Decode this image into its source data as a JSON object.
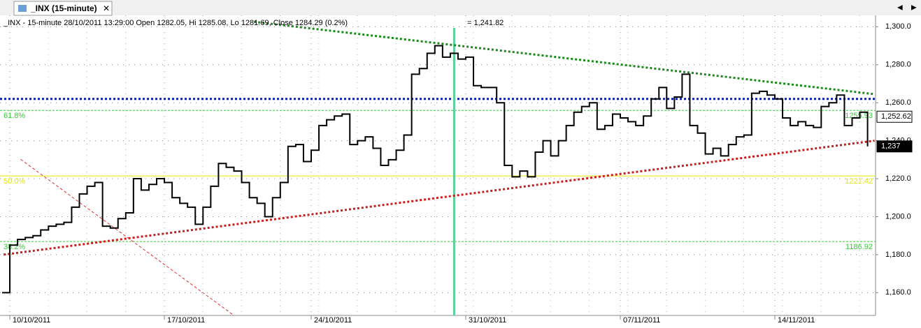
{
  "window": {
    "tab_title": "_INX (15-minute)"
  },
  "chart_data": {
    "type": "line",
    "title": "_INX - 15-minute 28/10/2011 13:29:00 Open 1282.05, Hi 1285.08, Lo 1281.69, Close 1284.29 (0.2%)",
    "cursor_value": "= 1,241.82",
    "categories": [
      null,
      "10/10/2011",
      null,
      null,
      null,
      null,
      null,
      null,
      null,
      null,
      null,
      null,
      null,
      null,
      null,
      null,
      null,
      null,
      null,
      null,
      null,
      "17/10/2011",
      null,
      null,
      null,
      null,
      null,
      null,
      null,
      null,
      null,
      null,
      null,
      null,
      null,
      null,
      null,
      null,
      null,
      null,
      "24/10/2011",
      null,
      null,
      null,
      null,
      null,
      null,
      null,
      null,
      null,
      null,
      null,
      null,
      null,
      null,
      null,
      null,
      null,
      null,
      null,
      "31/10/2011",
      null,
      null,
      null,
      null,
      null,
      null,
      null,
      null,
      null,
      null,
      null,
      null,
      null,
      null,
      null,
      null,
      null,
      null,
      null,
      "07/11/2011",
      null,
      null,
      null,
      null,
      null,
      null,
      null,
      null,
      null,
      null,
      null,
      null,
      null,
      null,
      null,
      null,
      null,
      null,
      null,
      "14/11/2011",
      null,
      null,
      null,
      null,
      null,
      null,
      null,
      null,
      null,
      null,
      null,
      null
    ],
    "series": [
      {
        "name": "_INX",
        "color": "#000000",
        "values": [
          1160,
          1185,
          1188,
          1189,
          1190,
          1193,
          1195,
          1196,
          1197,
          1205,
          1212,
          1216,
          1218,
          1195,
          1194,
          1199,
          1202,
          1220,
          1214,
          1217,
          1220,
          1218,
          1210,
          1207,
          1205,
          1196,
          1205,
          1216,
          1228,
          1226,
          1224,
          1218,
          1210,
          1207,
          1200,
          1210,
          1218,
          1237,
          1238,
          1229,
          1235,
          1248,
          1251,
          1253,
          1254,
          1238,
          1240,
          1242,
          1236,
          1227,
          1230,
          1235,
          1243,
          1275,
          1278,
          1286,
          1290,
          1284,
          1286,
          1283,
          1284,
          1269,
          1268,
          1268,
          1260,
          1227,
          1221,
          1224,
          1221,
          1234,
          1240,
          1232,
          1240,
          1248,
          1255,
          1258,
          1260,
          1246,
          1248,
          1254,
          1252,
          1250,
          1248,
          1253,
          1262,
          1268,
          1257,
          1263,
          1275,
          1248,
          1244,
          1233,
          1236,
          1232,
          1238,
          1242,
          1243,
          1265,
          1266,
          1264,
          1262,
          1252,
          1248,
          1250,
          1248,
          1247,
          1258,
          1260,
          1264,
          1248,
          1252,
          1255,
          1237
        ]
      }
    ],
    "ylim": [
      1148,
      1306
    ],
    "yticks": [
      {
        "value": 1160,
        "label": "1,160.0"
      },
      {
        "value": 1180,
        "label": "1,180.0"
      },
      {
        "value": 1200,
        "label": "1,200.0"
      },
      {
        "value": 1220,
        "label": "1,220.0"
      },
      {
        "value": 1240,
        "label": "1,240.0"
      },
      {
        "value": 1260,
        "label": "1,260.0"
      },
      {
        "value": 1280,
        "label": "1,280.0"
      },
      {
        "value": 1300,
        "label": "1,300.0"
      }
    ],
    "grid": true,
    "fib_levels": [
      {
        "value": 1255.93,
        "label": "1255.93",
        "name": "61.8%",
        "color": "#33cc33"
      },
      {
        "value": 1221.42,
        "label": "1221.42",
        "name": "50.0%",
        "color": "#e6e600"
      },
      {
        "value": 1186.92,
        "label": "1186.92",
        "name": "38.2%",
        "color": "#33cc33"
      }
    ],
    "horizontal_line": {
      "value": 1262,
      "color": "#0a1fa0"
    },
    "price_tags": [
      {
        "value": 1252.62,
        "label": "1,252.62",
        "bg": "#ffffff",
        "fg": "#000000"
      },
      {
        "value": 1237,
        "label": "1,237",
        "bg": "#000000",
        "fg": "#ffffff"
      }
    ],
    "trendlines": [
      {
        "color": "#1a8a1a",
        "start": [
          32.6,
          1302.6
        ],
        "end": [
          112.9,
          1264.5
        ],
        "style": "dotted"
      },
      {
        "color": "#c81e1e",
        "start": [
          0.2,
          1180
        ],
        "end": [
          112.9,
          1240
        ],
        "style": "dotted"
      },
      {
        "color": "#e03030",
        "start": [
          2.4,
          1230.2
        ],
        "end": [
          30,
          1148
        ],
        "style": "dashed"
      }
    ],
    "vertical_line": {
      "index": 58.5,
      "color": "#5ccf9a"
    }
  }
}
